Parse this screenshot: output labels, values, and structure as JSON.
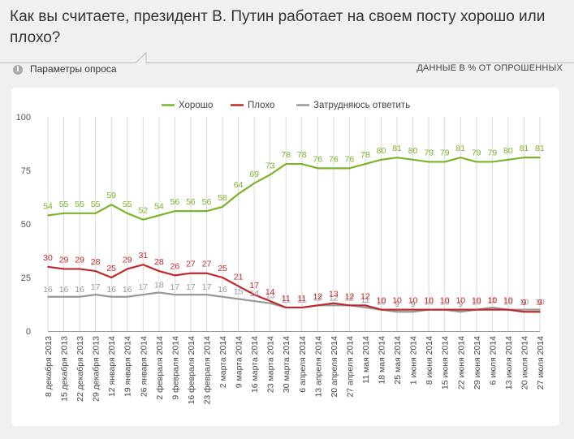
{
  "header": {
    "question": "Как вы считаете, президент В. Путин работает на своем посту хорошо или плохо?",
    "params_label": "Параметры опроса",
    "units_label": "ДАННЫЕ В % ОТ ОПРОШЕННЫХ"
  },
  "icons": {
    "info": "info-icon"
  },
  "colors": {
    "good": "#7cb32a",
    "bad": "#c0292b",
    "undecided": "#999999",
    "grid": "#d9d9d9"
  },
  "chart_data": {
    "type": "line",
    "title": "",
    "xlabel": "",
    "ylabel": "",
    "ylim": [
      0,
      100
    ],
    "yticks": [
      "0",
      "25",
      "50",
      "75",
      "100"
    ],
    "grid": "vertical",
    "legend_position": "top",
    "categories": [
      "8 декабря 2013",
      "15 декабря 2013",
      "22 декабря 2013",
      "29 декабря 2013",
      "12 января 2014",
      "19 января 2014",
      "26 января 2014",
      "2 февраля 2014",
      "9 февраля 2014",
      "16 февраля 2014",
      "23 февраля 2014",
      "2 марта 2014",
      "9 марта 2014",
      "16 марта 2014",
      "23 марта 2014",
      "30 марта 2014",
      "6 апреля 2014",
      "13 апреля 2014",
      "20 апреля 2014",
      "27 апреля 2014",
      "11 мая 2014",
      "18 мая 2014",
      "25 мая 2014",
      "1 июня 2014",
      "8 июня 2014",
      "15 июня 2014",
      "22 июня 2014",
      "29 июня 2014",
      "6 июля 2014",
      "13 июля 2014",
      "20 июля 2014",
      "27 июля 2014"
    ],
    "series": [
      {
        "name": "Хорошо",
        "color": "#7cb32a",
        "values": [
          54,
          55,
          55,
          55,
          59,
          55,
          52,
          54,
          56,
          56,
          56,
          58,
          64,
          69,
          73,
          78,
          78,
          76,
          76,
          76,
          78,
          80,
          81,
          80,
          79,
          79,
          81,
          79,
          79,
          80,
          81,
          81
        ]
      },
      {
        "name": "Плохо",
        "color": "#c0292b",
        "values": [
          30,
          29,
          29,
          28,
          25,
          29,
          31,
          28,
          26,
          27,
          27,
          25,
          21,
          17,
          14,
          11,
          11,
          12,
          13,
          12,
          12,
          10,
          10,
          10,
          10,
          10,
          10,
          10,
          10,
          10,
          9,
          9
        ]
      },
      {
        "name": "Затрудняюсь ответить",
        "color": "#999999",
        "values": [
          16,
          16,
          16,
          17,
          16,
          16,
          17,
          18,
          17,
          17,
          17,
          16,
          15,
          14,
          13,
          11,
          11,
          12,
          12,
          12,
          11,
          10,
          9,
          9,
          10,
          10,
          9,
          10,
          11,
          10,
          10,
          10
        ]
      }
    ]
  }
}
